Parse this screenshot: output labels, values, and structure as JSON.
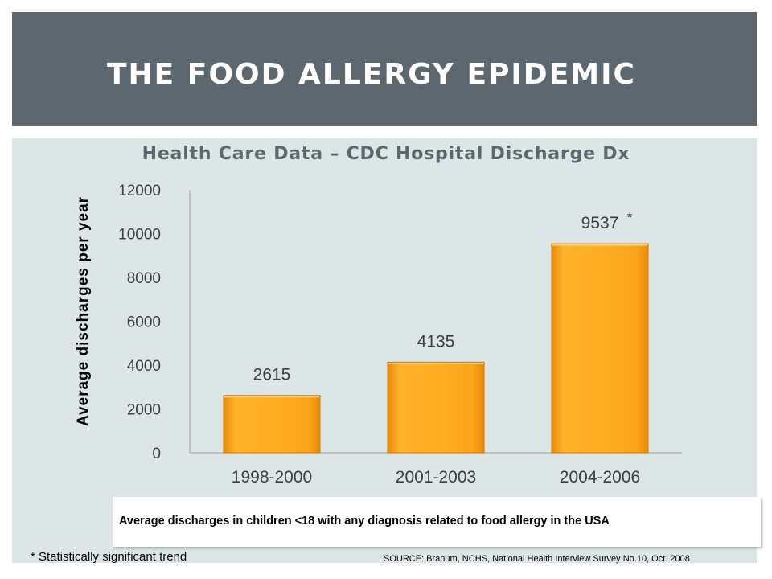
{
  "slide": {
    "title": "THE FOOD ALLERGY EPIDEMIC",
    "caption": "Average discharges in children <18 with any diagnosis related to food allergy in the USA",
    "footnote": "* Statistically significant trend",
    "source": "SOURCE: Branum, NCHS, National Health Interview Survey No.10, Oct. 2008"
  },
  "colors": {
    "title_bar": "#5c6770",
    "panel": "#dde6e6",
    "bar_light": "#ffb22a",
    "bar_dark": "#e88a0c"
  },
  "chart_data": {
    "type": "bar",
    "title": "Health Care Data – CDC Hospital Discharge Dx",
    "ylabel": "Average discharges per year",
    "xlabel": "",
    "categories": [
      "1998-2000",
      "2001-2003",
      "2004-2006"
    ],
    "values": [
      2615,
      4135,
      9537
    ],
    "data_labels": [
      "2615",
      "4135",
      "9537"
    ],
    "annotations": [
      {
        "category": "2004-2006",
        "text": "*"
      }
    ],
    "ylim": [
      0,
      12000
    ],
    "yticks": [
      0,
      2000,
      4000,
      6000,
      8000,
      10000,
      12000
    ],
    "grid": false
  }
}
